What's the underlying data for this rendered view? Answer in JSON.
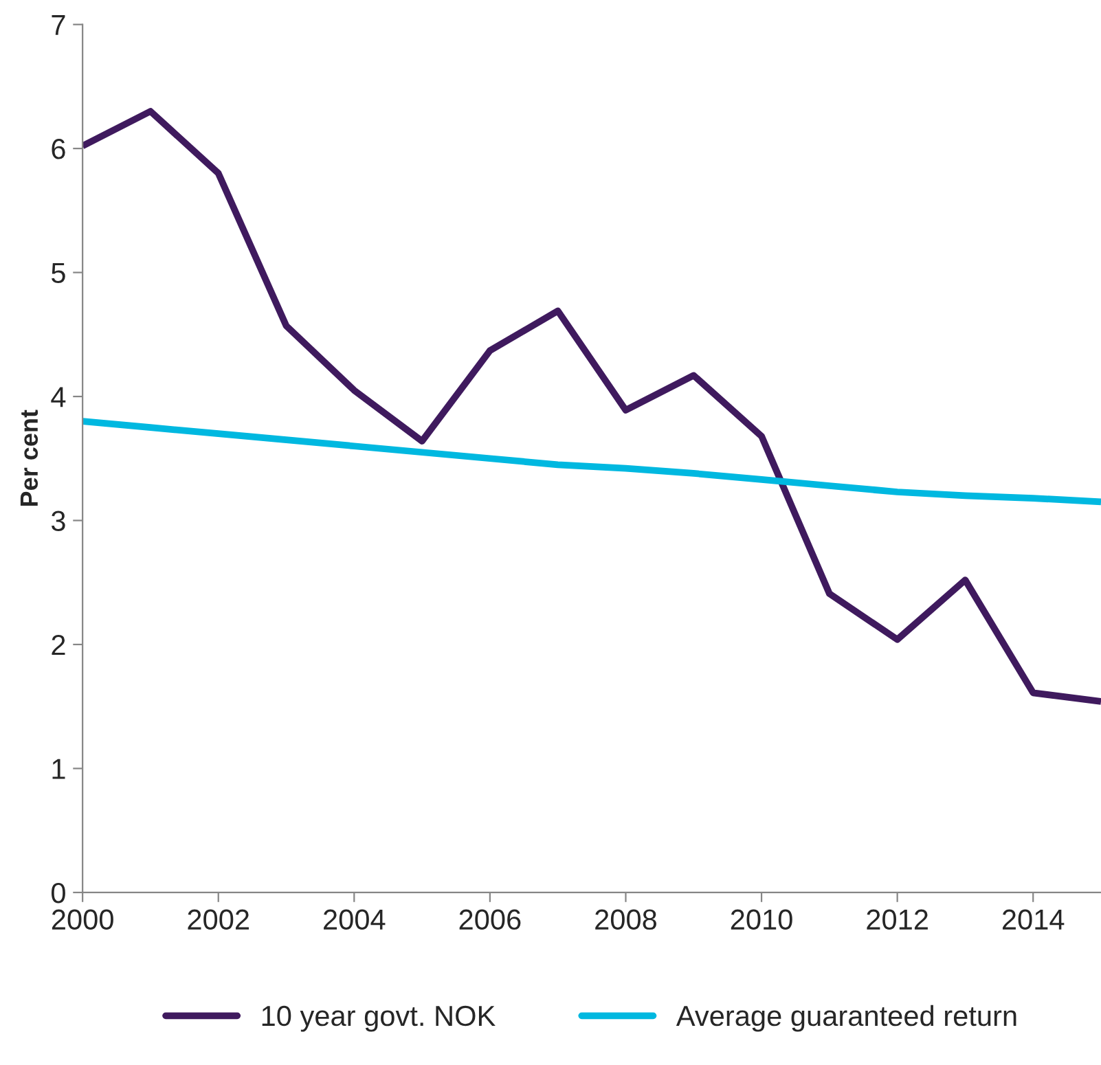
{
  "chart_data": {
    "type": "line",
    "ylabel": "Per cent",
    "x": [
      2000,
      2001,
      2002,
      2003,
      2004,
      2005,
      2006,
      2007,
      2008,
      2009,
      2010,
      2011,
      2012,
      2013,
      2014,
      2015
    ],
    "series": [
      {
        "name": "10 year govt. NOK",
        "color": "#3f1a5e",
        "values": [
          6.02,
          6.3,
          5.8,
          4.57,
          4.05,
          3.64,
          4.37,
          4.69,
          3.89,
          4.17,
          3.68,
          2.41,
          2.04,
          2.52,
          1.61,
          1.54
        ]
      },
      {
        "name": "Average guaranteed return",
        "color": "#00b8e0",
        "values": [
          3.8,
          3.75,
          3.7,
          3.65,
          3.6,
          3.55,
          3.5,
          3.45,
          3.42,
          3.38,
          3.33,
          3.28,
          3.23,
          3.2,
          3.18,
          3.15
        ]
      }
    ],
    "xlim": [
      2000,
      2015
    ],
    "xticks": [
      2000,
      2002,
      2004,
      2006,
      2008,
      2010,
      2012,
      2014
    ],
    "ylim": [
      0,
      7
    ],
    "yticks": [
      0,
      1,
      2,
      3,
      4,
      5,
      6,
      7
    ],
    "grid": false,
    "legend": "bottom",
    "marker": "none",
    "line_style": "solid"
  }
}
